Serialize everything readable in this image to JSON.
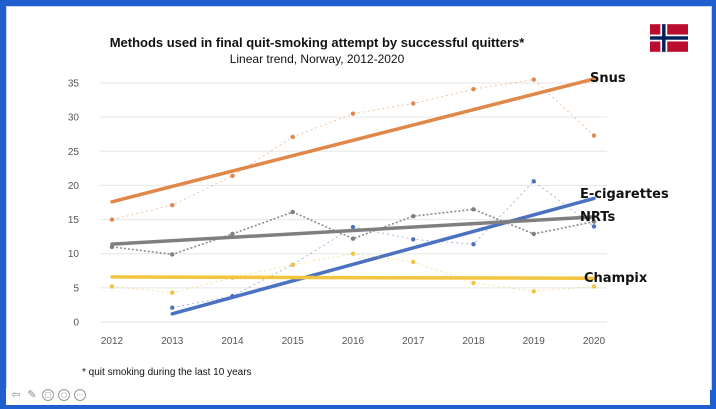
{
  "page": {
    "title": "Methods used in final quit-smoking attempt by successful quitters*",
    "subtitle": "Linear trend, Norway, 2012-2020",
    "footnote": "* quit smoking during the last 10 years"
  },
  "flag": {
    "icon": "norway-flag-icon",
    "colors": {
      "red": "#ba0c2f",
      "white": "#ffffff",
      "blue": "#00205b"
    }
  },
  "nav": {
    "icons": [
      "arrow-left-icon",
      "pencil-icon",
      "slides-icon",
      "zoom-icon",
      "more-icon"
    ]
  },
  "chart_data": {
    "type": "line",
    "x": [
      2012,
      2013,
      2014,
      2015,
      2016,
      2017,
      2018,
      2019,
      2020
    ],
    "ylim": [
      0,
      35
    ],
    "yticks": [
      0,
      5,
      10,
      15,
      20,
      25,
      30,
      35
    ],
    "grid": true,
    "series": [
      {
        "name": "Snus",
        "color": "#e0874a",
        "values": [
          15.0,
          17.1,
          21.4,
          27.1,
          30.5,
          32.0,
          34.1,
          35.5,
          27.3
        ],
        "trend": [
          17.6,
          35.6
        ]
      },
      {
        "name": "E-cigarettes",
        "color": "#4a72c0",
        "values": [
          null,
          2.1,
          3.8,
          8.4,
          13.9,
          12.1,
          11.4,
          20.6,
          14.0
        ],
        "trend": [
          1.2,
          18.1
        ]
      },
      {
        "name": "NRTs",
        "color": "#7f7f7f",
        "values": [
          11.0,
          9.9,
          12.9,
          16.1,
          12.2,
          15.5,
          16.5,
          12.9,
          14.7
        ],
        "trend": [
          11.4,
          15.4
        ]
      },
      {
        "name": "Champix",
        "color": "#f2c440",
        "values": [
          5.2,
          4.3,
          6.5,
          8.4,
          10.0,
          8.8,
          5.7,
          4.5,
          5.2
        ],
        "trend": [
          6.6,
          6.4
        ]
      }
    ]
  }
}
